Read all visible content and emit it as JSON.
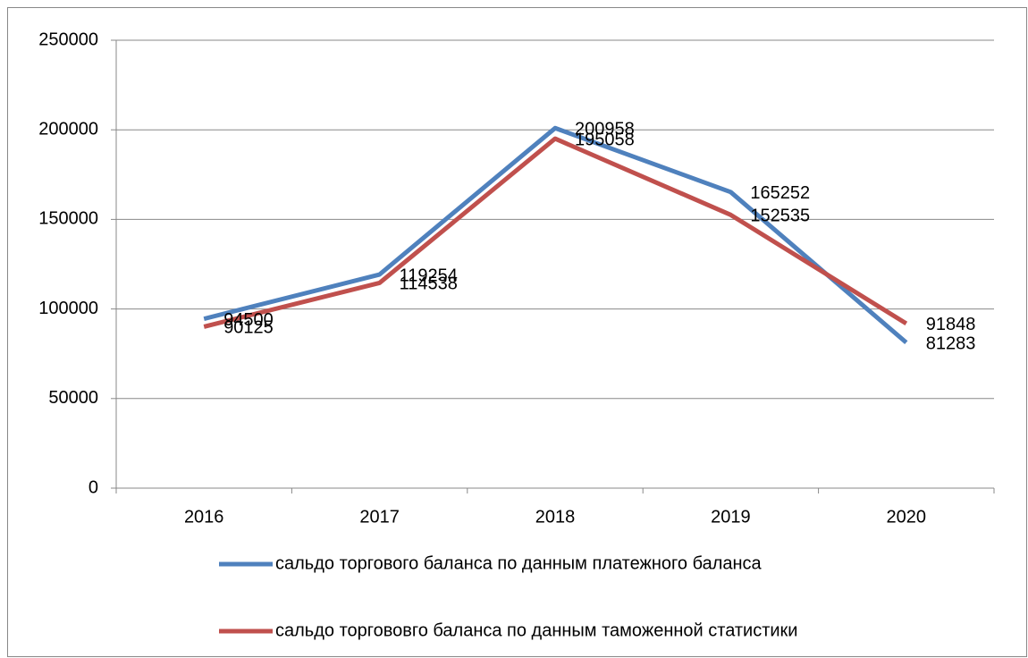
{
  "chart_data": {
    "type": "line",
    "categories": [
      "2016",
      "2017",
      "2018",
      "2019",
      "2020"
    ],
    "series": [
      {
        "name": "сальдо торгового баланса по данным платежного баланса",
        "color": "#4f81bd",
        "values": [
          94500,
          119254,
          200958,
          165252,
          81283
        ]
      },
      {
        "name": "сальдо торгововго баланса по данным таможенной статистики",
        "color": "#c0504d",
        "values": [
          90125,
          114538,
          195058,
          152535,
          91848
        ]
      }
    ],
    "ylim": [
      0,
      250000
    ],
    "yticks": [
      0,
      50000,
      100000,
      150000,
      200000,
      250000
    ],
    "grid": true,
    "legend": "bottom"
  }
}
